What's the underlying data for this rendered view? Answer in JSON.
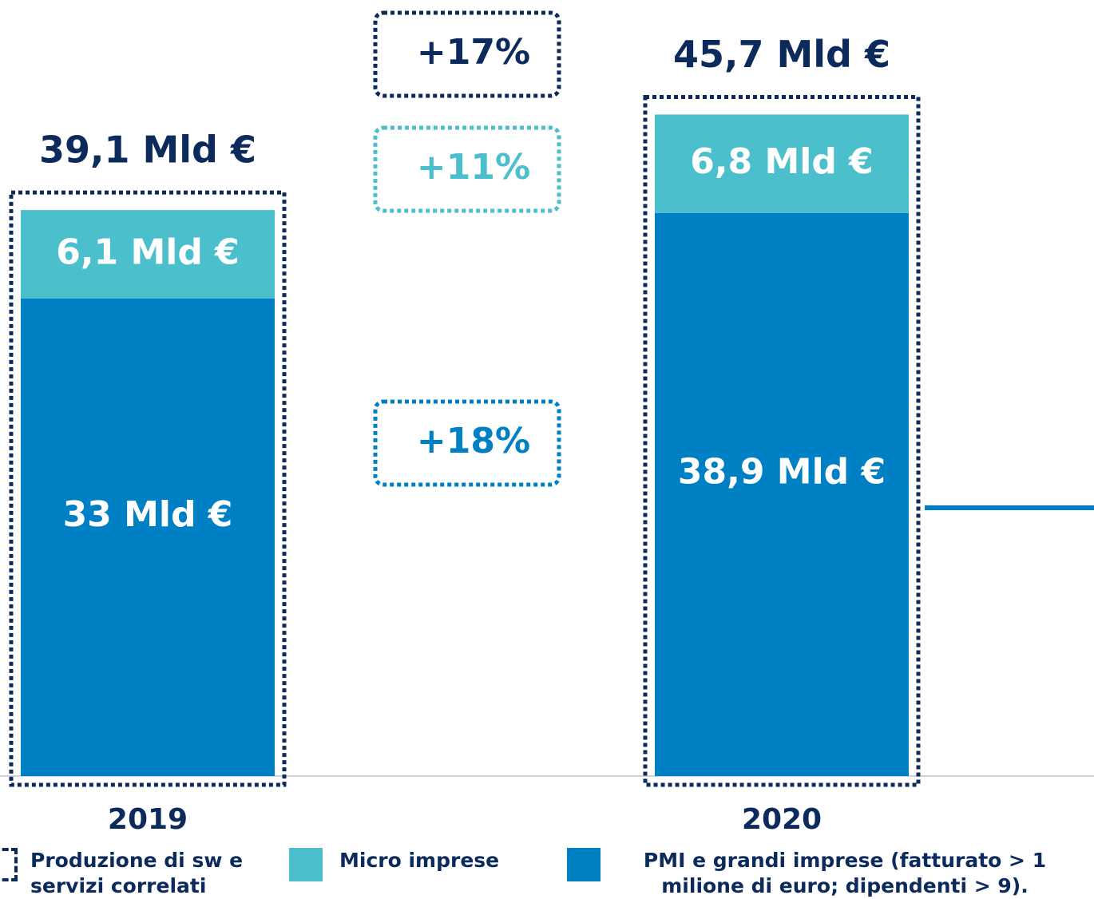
{
  "chart_data": {
    "type": "bar",
    "stacked": true,
    "categories": [
      "2019",
      "2020"
    ],
    "series": [
      {
        "name": "PMI e grandi imprese (fatturato > 1 milione di euro; dipendenti > 9).",
        "color": "#0080c4",
        "values": [
          33,
          38.9
        ],
        "value_labels": [
          "33 Mld €",
          "38,9 Mld €"
        ],
        "growth": "+18%"
      },
      {
        "name": "Micro imprese",
        "color": "#4bbfcc",
        "values": [
          6.1,
          6.8
        ],
        "value_labels": [
          "6,1 Mld €",
          "6,8 Mld €"
        ],
        "growth": "+11%"
      }
    ],
    "totals": {
      "name": "Produzione di sw e servizi correlati",
      "color": "#0d2a5c",
      "values": [
        39.1,
        45.7
      ],
      "value_labels": [
        "39,1 Mld €",
        "45,7 Mld €"
      ],
      "growth": "+17%"
    }
  }
}
